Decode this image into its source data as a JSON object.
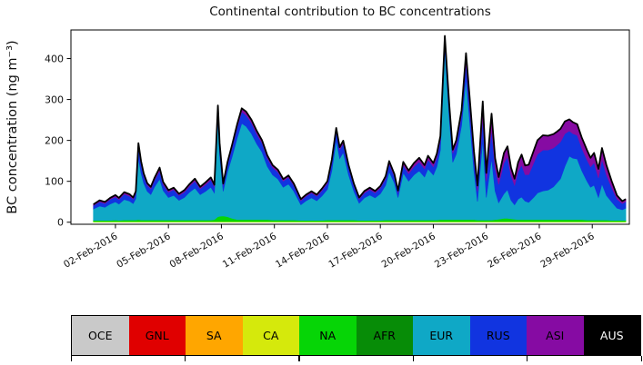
{
  "chart_data": {
    "type": "area",
    "stacked": true,
    "title": "Continental contribution to BC concentrations",
    "ylabel": "BC concentration (ng m⁻³)",
    "xlabel": "",
    "grid": false,
    "legend_position": "bottom-bar",
    "ylim": [
      -5,
      470
    ],
    "yticks": [
      0,
      100,
      200,
      300,
      400
    ],
    "xlim_days": [
      -0.52,
      31.1
    ],
    "xticks": [
      {
        "day": 2,
        "label": "02-Feb-2016"
      },
      {
        "day": 5,
        "label": "05-Feb-2016"
      },
      {
        "day": 8,
        "label": "08-Feb-2016"
      },
      {
        "day": 11,
        "label": "11-Feb-2016"
      },
      {
        "day": 14,
        "label": "14-Feb-2016"
      },
      {
        "day": 17,
        "label": "17-Feb-2016"
      },
      {
        "day": 20,
        "label": "20-Feb-2016"
      },
      {
        "day": 23,
        "label": "23-Feb-2016"
      },
      {
        "day": 26,
        "label": "26-Feb-2016"
      },
      {
        "day": 29,
        "label": "29-Feb-2016"
      }
    ],
    "x_days": [
      0.75,
      1.1,
      1.4,
      1.7,
      2.0,
      2.2,
      2.5,
      2.8,
      3.0,
      3.15,
      3.3,
      3.45,
      3.6,
      3.8,
      4.0,
      4.2,
      4.5,
      4.7,
      5.0,
      5.3,
      5.6,
      5.9,
      6.2,
      6.5,
      6.8,
      7.1,
      7.4,
      7.6,
      7.8,
      7.9,
      8.1,
      8.35,
      8.6,
      8.9,
      9.15,
      9.4,
      9.7,
      10.0,
      10.3,
      10.6,
      10.9,
      11.2,
      11.5,
      11.8,
      12.1,
      12.5,
      12.8,
      13.1,
      13.4,
      13.7,
      14.0,
      14.25,
      14.5,
      14.7,
      14.9,
      15.2,
      15.5,
      15.8,
      16.1,
      16.4,
      16.7,
      17.0,
      17.3,
      17.5,
      17.8,
      18.0,
      18.3,
      18.6,
      18.9,
      19.2,
      19.5,
      19.7,
      20.0,
      20.2,
      20.4,
      20.65,
      20.9,
      21.1,
      21.3,
      21.6,
      21.85,
      22.1,
      22.3,
      22.5,
      22.8,
      23.0,
      23.3,
      23.5,
      23.7,
      24.0,
      24.2,
      24.4,
      24.6,
      24.8,
      25.0,
      25.2,
      25.4,
      25.7,
      25.9,
      26.2,
      26.5,
      26.8,
      27.0,
      27.2,
      27.45,
      27.7,
      27.9,
      28.15,
      28.4,
      28.7,
      28.9,
      29.1,
      29.35,
      29.55,
      29.8,
      30.1,
      30.4,
      30.7,
      30.9
    ],
    "series": [
      {
        "name": "OCE",
        "color": "#c9c9c9",
        "label_color": "#000000",
        "values": 0
      },
      {
        "name": "GNL",
        "color": "#e00000",
        "label_color": "#000000",
        "values": 0
      },
      {
        "name": "SA",
        "color": "#ffa600",
        "label_color": "#000000",
        "values": 0
      },
      {
        "name": "CA",
        "color": "#d5e90c",
        "label_color": "#000000",
        "values": 1.5
      },
      {
        "name": "NA",
        "color": "#06d506",
        "label_color": "#000000",
        "values": [
          3,
          3,
          3,
          3,
          4,
          3,
          4,
          4,
          4,
          4,
          5,
          4,
          4,
          4,
          4,
          4,
          4,
          4,
          4,
          4,
          4,
          4,
          4,
          4,
          4,
          4,
          4,
          5,
          12,
          13,
          14,
          12,
          8,
          5,
          5,
          5,
          5,
          5,
          5,
          5,
          4,
          4,
          4,
          4,
          4,
          3,
          3,
          3,
          3,
          3,
          4,
          4,
          4,
          4,
          4,
          4,
          4,
          3,
          3,
          3,
          3,
          3,
          4,
          4,
          4,
          4,
          4,
          4,
          4,
          4,
          4,
          4,
          4,
          4,
          5,
          5,
          5,
          5,
          5,
          5,
          5,
          5,
          5,
          4,
          4,
          4,
          4,
          5,
          6,
          8,
          8,
          7,
          6,
          5,
          5,
          5,
          5,
          5,
          5,
          5,
          5,
          5,
          5,
          5,
          5,
          5,
          5,
          5,
          5,
          4,
          4,
          4,
          4,
          4,
          4,
          3,
          3,
          3,
          3
        ]
      },
      {
        "name": "AFR",
        "color": "#078c07",
        "label_color": "#000000",
        "values": 0
      },
      {
        "name": "EUR",
        "color": "#0fa8c6",
        "label_color": "#000000",
        "values": [
          28,
          35,
          32,
          40,
          44,
          40,
          50,
          46,
          40,
          52,
          150,
          115,
          90,
          70,
          62,
          80,
          100,
          72,
          55,
          60,
          48,
          55,
          68,
          78,
          62,
          70,
          80,
          65,
          240,
          150,
          60,
          110,
          150,
          200,
          235,
          228,
          210,
          185,
          165,
          130,
          110,
          100,
          80,
          88,
          70,
          38,
          48,
          55,
          48,
          60,
          75,
          120,
          195,
          150,
          165,
          110,
          70,
          42,
          55,
          62,
          55,
          65,
          85,
          118,
          90,
          55,
          115,
          95,
          110,
          120,
          105,
          125,
          110,
          130,
          170,
          415,
          250,
          140,
          160,
          230,
          345,
          220,
          120,
          45,
          195,
          55,
          150,
          70,
          40,
          60,
          70,
          45,
          35,
          50,
          55,
          45,
          42,
          55,
          65,
          70,
          72,
          80,
          90,
          100,
          130,
          155,
          150,
          148,
          120,
          95,
          80,
          85,
          55,
          88,
          60,
          45,
          30,
          26,
          30
        ]
      },
      {
        "name": "RUS",
        "color": "#1134e0",
        "label_color": "#000000",
        "values": [
          8,
          10,
          9,
          11,
          12,
          11,
          13,
          12,
          11,
          13,
          28,
          22,
          18,
          15,
          14,
          16,
          20,
          15,
          13,
          14,
          12,
          13,
          15,
          17,
          14,
          16,
          18,
          15,
          24,
          22,
          14,
          18,
          22,
          26,
          28,
          27,
          26,
          24,
          22,
          20,
          18,
          17,
          15,
          16,
          14,
          10,
          11,
          12,
          11,
          13,
          15,
          20,
          23,
          21,
          22,
          18,
          14,
          10,
          12,
          13,
          12,
          14,
          16,
          19,
          16,
          12,
          19,
          18,
          20,
          22,
          20,
          22,
          20,
          22,
          24,
          24,
          24,
          22,
          24,
          26,
          38,
          35,
          30,
          25,
          55,
          40,
          72,
          55,
          45,
          75,
          80,
          60,
          48,
          68,
          78,
          65,
          68,
          85,
          95,
          100,
          98,
          95,
          92,
          90,
          80,
          62,
          60,
          58,
          55,
          52,
          50,
          55,
          48,
          60,
          50,
          35,
          22,
          15,
          16
        ]
      },
      {
        "name": "ASI",
        "color": "#860ba3",
        "label_color": "#000000",
        "values": [
          3,
          4,
          4,
          4,
          5,
          4,
          5,
          5,
          4,
          5,
          9,
          7,
          6,
          5,
          5,
          6,
          8,
          6,
          5,
          5,
          4,
          5,
          5,
          6,
          5,
          6,
          6,
          5,
          8,
          7,
          5,
          6,
          7,
          8,
          9,
          9,
          8,
          8,
          7,
          7,
          6,
          6,
          5,
          5,
          5,
          4,
          4,
          4,
          4,
          5,
          5,
          7,
          7,
          7,
          7,
          6,
          5,
          4,
          5,
          5,
          5,
          5,
          6,
          7,
          6,
          5,
          8,
          8,
          9,
          10,
          9,
          10,
          9,
          10,
          10,
          10,
          10,
          9,
          10,
          11,
          24,
          22,
          18,
          14,
          40,
          20,
          38,
          25,
          18,
          25,
          26,
          20,
          16,
          22,
          26,
          22,
          24,
          30,
          34,
          36,
          35,
          34,
          33,
          32,
          30,
          28,
          28,
          27,
          26,
          24,
          22,
          24,
          22,
          28,
          24,
          16,
          9,
          6,
          6
        ]
      },
      {
        "name": "AUS",
        "color": "#000000",
        "label_color": "#ffffff",
        "values": 0
      }
    ],
    "total_line_color": "#000000"
  }
}
